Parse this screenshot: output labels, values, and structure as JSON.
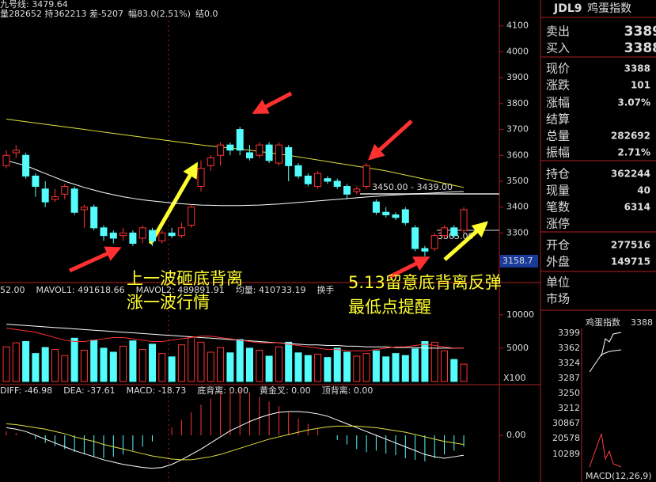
{
  "header": {
    "line1": "九号线: 3479.64",
    "items": [
      {
        "text": "量282652 持362213 差-5207",
        "color": "#dddddd"
      },
      {
        "text": "幅83.0(2.51%)",
        "color": "#ff4040"
      },
      {
        "text": "结0.0",
        "color": "#dddddd"
      }
    ]
  },
  "chart_data": [
    {
      "type": "candlestick",
      "ylim": [
        3130,
        4200
      ],
      "yticks": [
        3300,
        3400,
        3500,
        3600,
        3700,
        3800,
        3900,
        4000,
        4100
      ],
      "open": [
        3560,
        3610,
        3600,
        3520,
        3470,
        3430,
        3450,
        3470,
        3390,
        3400,
        3320,
        3300,
        3290,
        3300,
        3280,
        3310,
        3270,
        3300,
        3290,
        3330,
        3480,
        3560,
        3600,
        3640,
        3700,
        3610,
        3600,
        3640,
        3570,
        3630,
        3560,
        3520,
        3480,
        3510,
        3500,
        3480,
        3460,
        3480,
        3420,
        3380,
        3370,
        3390,
        3320,
        3240,
        3240,
        3290,
        3320,
        3310
      ],
      "close": [
        3600,
        3620,
        3520,
        3480,
        3420,
        3440,
        3480,
        3380,
        3400,
        3320,
        3290,
        3280,
        3300,
        3260,
        3320,
        3270,
        3300,
        3290,
        3320,
        3400,
        3550,
        3590,
        3640,
        3620,
        3620,
        3590,
        3640,
        3580,
        3640,
        3560,
        3520,
        3490,
        3530,
        3500,
        3480,
        3450,
        3470,
        3560,
        3380,
        3370,
        3360,
        3340,
        3240,
        3230,
        3290,
        3320,
        3290,
        3390
      ],
      "low": [
        3550,
        3590,
        3510,
        3440,
        3400,
        3420,
        3430,
        3370,
        3320,
        3310,
        3270,
        3260,
        3270,
        3250,
        3260,
        3250,
        3260,
        3280,
        3280,
        3320,
        3460,
        3540,
        3560,
        3600,
        3600,
        3580,
        3590,
        3570,
        3560,
        3500,
        3510,
        3480,
        3470,
        3490,
        3470,
        3430,
        3450,
        3470,
        3370,
        3360,
        3350,
        3330,
        3230,
        3210,
        3230,
        3280,
        3280,
        3300
      ],
      "high": [
        3620,
        3640,
        3610,
        3530,
        3500,
        3470,
        3490,
        3480,
        3410,
        3410,
        3330,
        3310,
        3320,
        3310,
        3330,
        3320,
        3310,
        3320,
        3340,
        3410,
        3580,
        3600,
        3650,
        3650,
        3710,
        3640,
        3650,
        3650,
        3650,
        3640,
        3570,
        3530,
        3540,
        3520,
        3510,
        3490,
        3480,
        3570,
        3430,
        3400,
        3380,
        3400,
        3330,
        3250,
        3300,
        3330,
        3330,
        3400
      ],
      "up_color": "#ff3232",
      "down_color": "#54fcfc",
      "series": [
        {
          "color": "#e0e040",
          "values": [
            3740,
            3735,
            3730,
            3725,
            3720,
            3715,
            3710,
            3705,
            3700,
            3695,
            3690,
            3685,
            3680,
            3675,
            3670,
            3665,
            3660,
            3655,
            3650,
            3645,
            3640,
            3636,
            3632,
            3628,
            3624,
            3620,
            3615,
            3610,
            3605,
            3600,
            3594,
            3588,
            3582,
            3576,
            3570,
            3564,
            3558,
            3552,
            3546,
            3540,
            3532,
            3524,
            3516,
            3508,
            3500,
            3492,
            3484,
            3476
          ]
        },
        {
          "color": "#ffffff",
          "values": [
            3580,
            3570,
            3560,
            3545,
            3530,
            3515,
            3500,
            3488,
            3476,
            3466,
            3456,
            3448,
            3440,
            3434,
            3428,
            3424,
            3420,
            3416,
            3413,
            3410,
            3408,
            3407,
            3406,
            3406,
            3406,
            3407,
            3408,
            3410,
            3412,
            3415,
            3418,
            3421,
            3424,
            3427,
            3430,
            3433,
            3436,
            3439,
            3442,
            3445,
            3447,
            3449,
            3451,
            3453,
            3455,
            3457,
            3459,
            3460
          ]
        }
      ]
    },
    {
      "type": "bar",
      "ylim": [
        0,
        12000
      ],
      "yticks": [
        5000,
        10000
      ],
      "unit_label": "X100",
      "header": [
        {
          "text": "52.00",
          "color": "#dddddd"
        },
        {
          "text": "MAVOL1: 491618.66",
          "color": "#ff4040"
        },
        {
          "text": "MAVOL2: 489891.91",
          "color": "#dddddd"
        },
        {
          "text": "均量: 410733.19",
          "color": "#dddddd"
        },
        {
          "text": "换手",
          "color": "#ff40ff"
        }
      ],
      "values": [
        5200,
        5800,
        6000,
        4200,
        5100,
        4800,
        3900,
        6500,
        4700,
        6200,
        5000,
        4400,
        5300,
        6100,
        4800,
        5600,
        4200,
        3700,
        5500,
        6700,
        5900,
        4400,
        5100,
        4300,
        6300,
        5000,
        4700,
        3800,
        5200,
        5900,
        4300,
        3900,
        4100,
        3600,
        5000,
        4400,
        3800,
        4200,
        4600,
        3700,
        4200,
        3900,
        4900,
        6000,
        5900,
        4600,
        3300,
        2600
      ],
      "series": [
        {
          "color": "#ffffff",
          "values": [
            8600,
            8500,
            8400,
            8300,
            8200,
            8100,
            8000,
            7900,
            7800,
            7700,
            7600,
            7500,
            7400,
            7300,
            7200,
            7100,
            7000,
            6900,
            6800,
            6700,
            6600,
            6500,
            6400,
            6300,
            6200,
            6100,
            6000,
            5900,
            5800,
            5700,
            5600,
            5500,
            5500,
            5400,
            5400,
            5300,
            5300,
            5200,
            5200,
            5200,
            5100,
            5100,
            5100,
            5000,
            5000,
            5000,
            5000,
            5000
          ]
        },
        {
          "color": "#ff3030",
          "values": [
            8000,
            7800,
            7600,
            7400,
            7000,
            6600,
            6200,
            6000,
            6000,
            6200,
            6400,
            6600,
            6600,
            6400,
            6200,
            6000,
            6000,
            6200,
            6400,
            6600,
            6800,
            6800,
            6600,
            6400,
            6200,
            6000,
            5800,
            5800,
            5800,
            5600,
            5400,
            5200,
            5000,
            4800,
            4800,
            4600,
            4600,
            4600,
            4800,
            5000,
            5200,
            5200,
            5400,
            5600,
            5400,
            5200,
            5000,
            5000
          ]
        }
      ]
    },
    {
      "type": "macd",
      "ylim": [
        -60,
        60
      ],
      "yticks": [
        {
          "value": 0,
          "label": "0.00"
        }
      ],
      "header": [
        {
          "text": "DIFF: -46.98",
          "color": "#dddddd"
        },
        {
          "text": "DEA: -37.61",
          "color": "#dddddd"
        },
        {
          "text": "MACD: -18.73",
          "color": "#4060ff"
        },
        {
          "text": "底背离: 0.00",
          "color": "#ff4040"
        },
        {
          "text": "黄金叉: 0.00",
          "color": "#ffff40"
        },
        {
          "text": "顶背离: 0.00",
          "color": "#ffff40"
        }
      ],
      "values": [
        5,
        3,
        0,
        -5,
        -10,
        -14,
        -18,
        -22,
        -25,
        -28,
        -30,
        -28,
        -25,
        -20,
        -15,
        -8,
        0,
        10,
        20,
        30,
        40,
        48,
        55,
        58,
        60,
        56,
        50,
        44,
        38,
        30,
        22,
        15,
        8,
        0,
        -6,
        -12,
        -18,
        -22,
        -20,
        -24,
        -26,
        -30,
        -32,
        -34,
        -30,
        -25,
        -20,
        -15
      ],
      "series": [
        {
          "color": "#ffffff",
          "values": [
            10,
            8,
            5,
            0,
            -5,
            -10,
            -15,
            -20,
            -24,
            -28,
            -32,
            -35,
            -38,
            -40,
            -42,
            -43,
            -42,
            -38,
            -32,
            -25,
            -18,
            -10,
            -2,
            6,
            12,
            18,
            23,
            27,
            30,
            31,
            31,
            30,
            28,
            25,
            20,
            15,
            10,
            5,
            0,
            -5,
            -10,
            -15,
            -20,
            -25,
            -28,
            -30,
            -28,
            -26
          ]
        },
        {
          "color": "#e0e040",
          "values": [
            15,
            14,
            12,
            10,
            8,
            5,
            2,
            -2,
            -5,
            -8,
            -12,
            -15,
            -18,
            -21,
            -24,
            -27,
            -29,
            -31,
            -32,
            -32,
            -30,
            -28,
            -25,
            -21,
            -17,
            -13,
            -9,
            -5,
            -2,
            1,
            4,
            7,
            9,
            11,
            12,
            12,
            12,
            11,
            10,
            8,
            6,
            4,
            1,
            -2,
            -5,
            -8,
            -10,
            -12
          ]
        }
      ]
    }
  ],
  "price_labels": {
    "range": "3450.00 - 3439.00",
    "last": "3305.00",
    "tag": "3158.7"
  },
  "annotations": [
    "上一波砸底背离",
    "涨一波行情",
    "5.13留意底背离反弹",
    "最低点提醒"
  ],
  "quote_panel": {
    "symbol": "JDL9",
    "name": "鸡蛋指数",
    "rows": [
      {
        "label": "卖出",
        "value": 3389
      },
      {
        "label": "买入",
        "value": 3388
      },
      {
        "label": "现价",
        "value": 3388
      },
      {
        "label": "涨跌",
        "value": 101
      },
      {
        "label": "涨幅",
        "value": "3.07%"
      },
      {
        "label": "结算"
      },
      {
        "label": "总量",
        "value": 282692
      },
      {
        "label": "振幅",
        "value": "2.71%"
      },
      {
        "label": "持仓",
        "value": 362244
      },
      {
        "label": "现量",
        "value": 40
      },
      {
        "label": "笔数",
        "value": 6314
      },
      {
        "label": "涨停"
      },
      {
        "label": "开仓",
        "value": 277516
      },
      {
        "label": "外盘",
        "value": 149715
      },
      {
        "label": "单位"
      },
      {
        "label": "市场"
      }
    ]
  },
  "mini_chart": {
    "title": "鸡蛋指数",
    "value": "3388",
    "labels": [
      "3399",
      "3362",
      "3324",
      "3287",
      "3250",
      "3212",
      "30867",
      "20578",
      "10289"
    ],
    "footer": "MACD(12,26,9)"
  }
}
